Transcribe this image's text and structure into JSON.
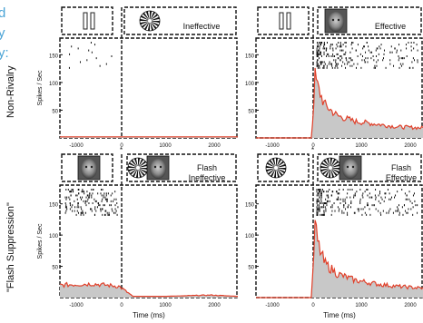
{
  "side_text": [
    "d",
    "y",
    "y:"
  ],
  "row_labels": {
    "top": "Non-Rivalry",
    "bottom": "\"Flash Suppression\""
  },
  "panels": [
    {
      "id": "nr-ineffective",
      "label": "Ineffective",
      "x_ticks": [
        "-1000",
        "0",
        "1000",
        "2000"
      ],
      "y_ticks": [
        "150",
        "100",
        "50"
      ],
      "ylabel": "Spikes / Sec",
      "xlabel": ""
    },
    {
      "id": "nr-effective",
      "label": "Effective",
      "x_ticks": [
        "-1000",
        "0",
        "1000",
        "2000"
      ],
      "y_ticks": [
        "150",
        "100",
        "50"
      ],
      "ylabel": "",
      "xlabel": ""
    },
    {
      "id": "fs-ineffective",
      "label": "Flash\nIneffective",
      "x_ticks": [
        "-1000",
        "0",
        "1000",
        "2000"
      ],
      "y_ticks": [
        "150",
        "100",
        "50"
      ],
      "ylabel": "Spikes / Sec",
      "xlabel": "Time (ms)"
    },
    {
      "id": "fs-effective",
      "label": "Flash\nEffective",
      "x_ticks": [
        "-1000",
        "0",
        "1000",
        "2000"
      ],
      "y_ticks": [
        "150",
        "100",
        "50"
      ],
      "ylabel": "",
      "xlabel": "Time (ms)"
    }
  ],
  "colors": {
    "psth_fill": "#c8c8c8",
    "psth_line": "#e0402a",
    "text": "#4aa3d6"
  },
  "chart_data": [
    {
      "type": "area",
      "title": "",
      "xlabel": "",
      "ylabel": "Spikes / Sec",
      "xlim": [
        -1300,
        2600
      ],
      "ylim": [
        0,
        180
      ],
      "x": [
        -1300,
        0,
        1000,
        2000,
        2600
      ],
      "values": [
        2,
        2,
        2,
        2,
        2
      ]
    },
    {
      "type": "area",
      "title": "",
      "xlabel": "",
      "ylabel": "",
      "xlim": [
        -1300,
        2600
      ],
      "ylim": [
        0,
        180
      ],
      "x": [
        -1300,
        0,
        80,
        150,
        300,
        600,
        1000,
        1500,
        2000,
        2600
      ],
      "values": [
        0,
        0,
        110,
        90,
        60,
        40,
        30,
        25,
        20,
        18
      ]
    },
    {
      "type": "area",
      "title": "",
      "xlabel": "Time (ms)",
      "ylabel": "Spikes / Sec",
      "xlim": [
        -1300,
        2600
      ],
      "ylim": [
        0,
        180
      ],
      "x": [
        -1300,
        -600,
        0,
        300,
        1000,
        2000,
        2600
      ],
      "values": [
        20,
        22,
        18,
        2,
        2,
        4,
        2
      ]
    },
    {
      "type": "area",
      "title": "",
      "xlabel": "Time (ms)",
      "ylabel": "",
      "xlim": [
        -1300,
        2600
      ],
      "ylim": [
        0,
        180
      ],
      "x": [
        -1300,
        0,
        80,
        150,
        300,
        600,
        1000,
        1500,
        2000,
        2600
      ],
      "values": [
        0,
        0,
        115,
        85,
        55,
        38,
        28,
        22,
        18,
        15
      ]
    }
  ]
}
